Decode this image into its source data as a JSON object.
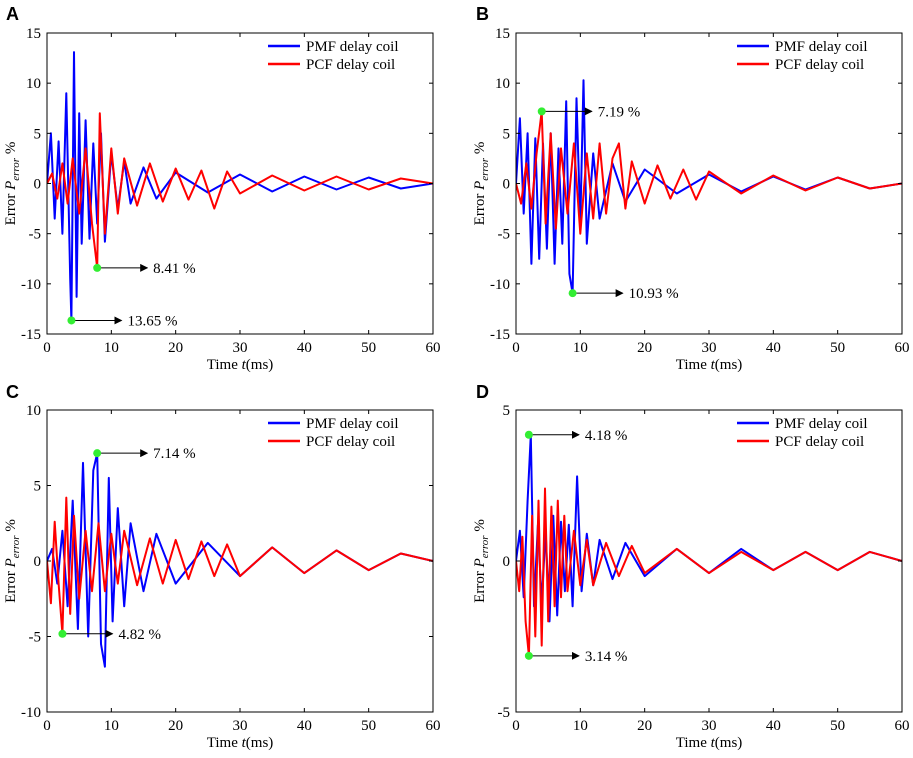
{
  "colors": {
    "pmf": "#0000ff",
    "pcf": "#ff0000",
    "marker": "#33ee33",
    "axis": "#000000"
  },
  "chart_data": [
    {
      "type": "line",
      "panel_label": "A",
      "xlabel_prefix": "Time ",
      "xlabel_var": "t",
      "xlabel_suffix": "(ms)",
      "ylabel_prefix": "Error ",
      "ylabel_var": "P",
      "ylabel_sub": "error",
      "ylabel_suffix": " %",
      "xlim": [
        0,
        60
      ],
      "ylim": [
        -15,
        15
      ],
      "xticks": [
        0,
        10,
        20,
        30,
        40,
        50,
        60
      ],
      "yticks": [
        -15,
        -10,
        -5,
        0,
        5,
        10,
        15
      ],
      "legend_position": "top-right",
      "series": [
        {
          "name": "PMF delay coil",
          "color": "#0000ff",
          "x": [
            0,
            0.6,
            1.2,
            1.8,
            2.4,
            3.0,
            3.6,
            3.8,
            4.2,
            4.6,
            5.0,
            5.4,
            6.0,
            6.6,
            7.2,
            7.8,
            8.4,
            9.0,
            10.0,
            11.0,
            12.0,
            13.0,
            15.0,
            17.0,
            20.0,
            25.0,
            30.0,
            35.0,
            40.0,
            45.0,
            50.0,
            55.0,
            60.0
          ],
          "y": [
            0,
            5.0,
            -3.5,
            4.2,
            -5.0,
            9.0,
            -9.5,
            -13.65,
            13.1,
            -11.3,
            7.0,
            -6.0,
            6.3,
            -5.5,
            4.0,
            -4.0,
            5.0,
            -5.8,
            3.0,
            -2.5,
            2.2,
            -2.0,
            1.6,
            -1.5,
            1.1,
            -0.9,
            0.9,
            -0.8,
            0.7,
            -0.6,
            0.6,
            -0.5,
            0
          ]
        },
        {
          "name": "PCF delay coil",
          "color": "#ff0000",
          "x": [
            0,
            0.8,
            1.6,
            2.4,
            3.2,
            4.0,
            5.0,
            6.0,
            7.0,
            7.8,
            8.2,
            9.0,
            10.0,
            11.0,
            12.0,
            14.0,
            16.0,
            18.0,
            20.0,
            22.0,
            24.0,
            26.0,
            28.0,
            30.0,
            35.0,
            40.0,
            45.0,
            50.0,
            55.0,
            60.0
          ],
          "y": [
            0,
            1.0,
            -1.5,
            2.0,
            -2.0,
            2.5,
            -3.0,
            3.5,
            -4.0,
            -8.41,
            7.0,
            -5.0,
            3.5,
            -3.0,
            2.5,
            -2.2,
            2.0,
            -1.8,
            1.5,
            -1.6,
            1.3,
            -2.5,
            1.2,
            -1.0,
            0.8,
            -0.7,
            0.7,
            -0.6,
            0.5,
            0
          ]
        }
      ],
      "annotations": [
        {
          "x": 7.8,
          "y": -8.41,
          "text": "8.41 %"
        },
        {
          "x": 3.8,
          "y": -13.65,
          "text": "13.65 %"
        }
      ]
    },
    {
      "type": "line",
      "panel_label": "B",
      "xlabel_prefix": "Time ",
      "xlabel_var": "t",
      "xlabel_suffix": "(ms)",
      "ylabel_prefix": "Error ",
      "ylabel_var": "P",
      "ylabel_sub": "error",
      "ylabel_suffix": " %",
      "xlim": [
        0,
        60
      ],
      "ylim": [
        -15,
        15
      ],
      "xticks": [
        0,
        10,
        20,
        30,
        40,
        50,
        60
      ],
      "yticks": [
        -15,
        -10,
        -5,
        0,
        5,
        10,
        15
      ],
      "legend_position": "top-right",
      "series": [
        {
          "name": "PMF delay coil",
          "color": "#0000ff",
          "x": [
            0,
            0.6,
            1.2,
            1.8,
            2.4,
            3.0,
            3.6,
            4.2,
            4.8,
            5.4,
            6.0,
            6.6,
            7.2,
            7.8,
            8.3,
            8.8,
            9.4,
            10.0,
            10.5,
            11.0,
            12.0,
            13.0,
            15.0,
            17.0,
            20.0,
            25.0,
            30.0,
            35.0,
            40.0,
            45.0,
            50.0,
            55.0,
            60.0
          ],
          "y": [
            0,
            6.5,
            -3.0,
            5.0,
            -8.0,
            4.5,
            -7.5,
            4.0,
            -6.5,
            5.0,
            -8.0,
            3.5,
            -6.0,
            8.2,
            -9.0,
            -10.93,
            8.5,
            -4.0,
            10.3,
            -6.0,
            3.0,
            -3.5,
            2.0,
            -1.8,
            1.4,
            -1.0,
            0.9,
            -0.8,
            0.7,
            -0.6,
            0.6,
            -0.5,
            0
          ]
        },
        {
          "name": "PCF delay coil",
          "color": "#ff0000",
          "x": [
            0,
            0.8,
            1.6,
            2.4,
            3.2,
            4.0,
            4.6,
            5.4,
            6.2,
            7.0,
            8.0,
            9.0,
            10.0,
            11.0,
            12.0,
            13.0,
            14.0,
            15.0,
            16.0,
            17.0,
            18.0,
            20.0,
            22.0,
            24.0,
            26.0,
            28.0,
            30.0,
            35.0,
            40.0,
            45.0,
            50.0,
            55.0,
            60.0
          ],
          "y": [
            0,
            -2.0,
            2.0,
            -2.5,
            3.0,
            7.19,
            -4.0,
            5.0,
            -4.5,
            3.5,
            -3.0,
            4.0,
            -5.0,
            3.0,
            -3.5,
            4.0,
            -3.0,
            2.5,
            4.0,
            -2.5,
            2.2,
            -2.0,
            1.8,
            -1.5,
            1.4,
            -1.6,
            1.2,
            -1.0,
            0.8,
            -0.7,
            0.6,
            -0.5,
            0
          ]
        }
      ],
      "annotations": [
        {
          "x": 4.0,
          "y": 7.19,
          "text": "7.19 %"
        },
        {
          "x": 8.8,
          "y": -10.93,
          "text": "10.93 %"
        }
      ]
    },
    {
      "type": "line",
      "panel_label": "C",
      "xlabel_prefix": "Time ",
      "xlabel_var": "t",
      "xlabel_suffix": "(ms)",
      "ylabel_prefix": "Error ",
      "ylabel_var": "P",
      "ylabel_sub": "error",
      "ylabel_suffix": " %",
      "xlim": [
        0,
        60
      ],
      "ylim": [
        -10,
        10
      ],
      "xticks": [
        0,
        10,
        20,
        30,
        40,
        50,
        60
      ],
      "yticks": [
        -10,
        -5,
        0,
        5,
        10
      ],
      "legend_position": "top-right",
      "series": [
        {
          "name": "PMF delay coil",
          "color": "#0000ff",
          "x": [
            0,
            0.8,
            1.6,
            2.4,
            3.2,
            4.0,
            4.8,
            5.6,
            6.4,
            7.2,
            7.8,
            8.4,
            9.0,
            9.6,
            10.2,
            11.0,
            12.0,
            13.0,
            15.0,
            17.0,
            20.0,
            25.0,
            30.0,
            35.0,
            40.0,
            45.0,
            50.0,
            55.0,
            60.0
          ],
          "y": [
            0,
            0.8,
            -1.5,
            2.0,
            -3.0,
            4.0,
            -4.5,
            6.5,
            -5.0,
            6.0,
            7.14,
            -5.5,
            -7.0,
            5.5,
            -4.0,
            3.5,
            -3.0,
            2.5,
            -2.0,
            1.8,
            -1.5,
            1.2,
            -1.0,
            0.9,
            -0.8,
            0.7,
            -0.6,
            0.5,
            0
          ]
        },
        {
          "name": "PCF delay coil",
          "color": "#ff0000",
          "x": [
            0,
            0.6,
            1.2,
            1.8,
            2.4,
            3.0,
            3.6,
            4.2,
            5.0,
            6.0,
            7.0,
            8.0,
            9.0,
            10.0,
            11.0,
            12.0,
            14.0,
            16.0,
            18.0,
            20.0,
            22.0,
            24.0,
            26.0,
            28.0,
            30.0,
            35.0,
            40.0,
            45.0,
            50.0,
            55.0,
            60.0
          ],
          "y": [
            0,
            -2.8,
            2.6,
            -1.5,
            -4.82,
            4.2,
            -3.5,
            3.0,
            -2.5,
            2.0,
            -2.0,
            2.5,
            -2.0,
            1.8,
            -1.5,
            2.0,
            -1.6,
            1.5,
            -1.5,
            1.4,
            -1.2,
            1.3,
            -1.0,
            1.1,
            -1.0,
            0.9,
            -0.8,
            0.7,
            -0.6,
            0.5,
            0
          ]
        }
      ],
      "annotations": [
        {
          "x": 7.8,
          "y": 7.14,
          "text": "7.14 %"
        },
        {
          "x": 2.4,
          "y": -4.82,
          "text": "4.82 %"
        }
      ]
    },
    {
      "type": "line",
      "panel_label": "D",
      "xlabel_prefix": "Time ",
      "xlabel_var": "t",
      "xlabel_suffix": "(ms)",
      "ylabel_prefix": "Error ",
      "ylabel_var": "P",
      "ylabel_sub": "error",
      "ylabel_suffix": " %",
      "xlim": [
        0,
        60
      ],
      "ylim": [
        -5,
        5
      ],
      "xticks": [
        0,
        10,
        20,
        30,
        40,
        50,
        60
      ],
      "yticks": [
        -5,
        0,
        5
      ],
      "legend_position": "top-right",
      "series": [
        {
          "name": "PMF delay coil",
          "color": "#0000ff",
          "x": [
            0,
            0.6,
            1.2,
            1.8,
            2.3,
            2.8,
            3.4,
            4.0,
            4.6,
            5.2,
            5.8,
            6.4,
            7.0,
            7.6,
            8.2,
            8.8,
            9.5,
            10.2,
            11.0,
            12.0,
            13.0,
            15.0,
            17.0,
            20.0,
            25.0,
            30.0,
            35.0,
            40.0,
            45.0,
            50.0,
            55.0,
            60.0
          ],
          "y": [
            0,
            1.0,
            -1.2,
            2.0,
            4.18,
            -1.5,
            1.2,
            -1.4,
            1.0,
            -2.0,
            1.5,
            -1.8,
            1.3,
            -1.0,
            1.2,
            -1.5,
            2.8,
            -1.0,
            0.9,
            -0.8,
            0.7,
            -0.6,
            0.6,
            -0.5,
            0.4,
            -0.4,
            0.4,
            -0.3,
            0.3,
            -0.3,
            0.3,
            0
          ]
        },
        {
          "name": "PCF delay coil",
          "color": "#ff0000",
          "x": [
            0,
            0.5,
            1.0,
            1.5,
            2.0,
            2.5,
            3.0,
            3.5,
            4.0,
            4.5,
            5.0,
            5.5,
            6.0,
            6.5,
            7.0,
            7.5,
            8.0,
            9.0,
            10.0,
            11.0,
            12.0,
            14.0,
            16.0,
            18.0,
            20.0,
            25.0,
            30.0,
            35.0,
            40.0,
            45.0,
            50.0,
            55.0,
            60.0
          ],
          "y": [
            0,
            -1.0,
            0.8,
            -2.0,
            -3.14,
            1.5,
            -2.5,
            2.0,
            -2.8,
            2.4,
            -2.0,
            1.8,
            -1.5,
            2.0,
            -1.2,
            1.5,
            -1.0,
            1.0,
            -0.8,
            0.7,
            -0.8,
            0.6,
            -0.5,
            0.5,
            -0.4,
            0.4,
            -0.4,
            0.3,
            -0.3,
            0.3,
            -0.3,
            0.3,
            0
          ]
        }
      ],
      "annotations": [
        {
          "x": 2.0,
          "y": 4.18,
          "text": "4.18 %"
        },
        {
          "x": 2.0,
          "y": -3.14,
          "text": "3.14 %"
        }
      ]
    }
  ]
}
